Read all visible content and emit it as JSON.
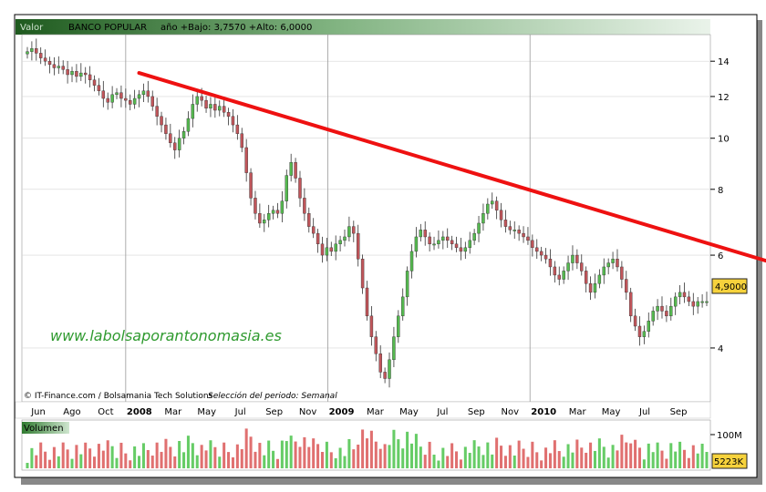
{
  "header": {
    "valor_label": "Valor",
    "ticker": "BANCO POPULAR",
    "stats": "año +Bajo: 3,7570 +Alto: 6,0000"
  },
  "watermark": "www.labolsaporantonomasia.es",
  "footer": {
    "source": "© IT-Finance.com / Bolsamania Tech Solutions",
    "selection": "Selección del periodo: Semanal"
  },
  "volume_panel": {
    "label": "Volumen",
    "scale_label": "100M",
    "last_value": "5223K"
  },
  "colors": {
    "up": "#55b94f",
    "down": "#c0555a",
    "trendline": "#ee1111",
    "vol_up": "#66cc66",
    "vol_down": "#e07070"
  },
  "chart_data": {
    "type": "candlestick",
    "title": "",
    "xlabel": "",
    "ylabel": "",
    "y_scale": "log",
    "y_ticks": [
      4,
      6,
      8,
      10,
      12,
      14
    ],
    "ylim": [
      3.2,
      15.6
    ],
    "grid": true,
    "last_price_label": "4,9000",
    "last_price": 4.9,
    "x_tick_labels": [
      {
        "label": "Jun",
        "bold": false
      },
      {
        "label": "Ago",
        "bold": false
      },
      {
        "label": "Oct",
        "bold": false
      },
      {
        "label": "2008",
        "bold": true
      },
      {
        "label": "Mar",
        "bold": false
      },
      {
        "label": "May",
        "bold": false
      },
      {
        "label": "Jul",
        "bold": false
      },
      {
        "label": "Sep",
        "bold": false
      },
      {
        "label": "Nov",
        "bold": false
      },
      {
        "label": "2009",
        "bold": true
      },
      {
        "label": "Mar",
        "bold": false
      },
      {
        "label": "May",
        "bold": false
      },
      {
        "label": "Jul",
        "bold": false
      },
      {
        "label": "Sep",
        "bold": false
      },
      {
        "label": "Nov",
        "bold": false
      },
      {
        "label": "2010",
        "bold": true
      },
      {
        "label": "Mar",
        "bold": false
      },
      {
        "label": "May",
        "bold": false
      },
      {
        "label": "Jul",
        "bold": false
      },
      {
        "label": "Sep",
        "bold": false
      }
    ],
    "year_separators": [
      "2008",
      "2009",
      "2010"
    ],
    "trendline": {
      "start_index": 25,
      "start_value": 13.3,
      "end_index": 194,
      "end_value": 4.95
    },
    "close_series": [
      14.6,
      14.8,
      14.5,
      14.2,
      14.0,
      13.8,
      13.6,
      13.7,
      13.5,
      13.2,
      13.4,
      13.1,
      13.3,
      13.2,
      12.9,
      12.6,
      12.3,
      11.9,
      11.7,
      12.1,
      12.2,
      11.9,
      11.8,
      11.6,
      11.9,
      12.1,
      12.3,
      12.0,
      11.5,
      11.0,
      10.6,
      10.2,
      9.8,
      9.5,
      10.0,
      10.3,
      10.9,
      11.6,
      12.0,
      11.8,
      11.4,
      11.6,
      11.3,
      11.5,
      11.2,
      11.0,
      10.6,
      10.2,
      9.6,
      8.6,
      7.7,
      7.2,
      6.9,
      7.0,
      7.2,
      7.3,
      7.2,
      7.6,
      8.5,
      9.0,
      8.4,
      7.7,
      7.2,
      6.8,
      6.6,
      6.3,
      6.0,
      6.2,
      6.1,
      6.3,
      6.4,
      6.5,
      6.8,
      6.6,
      5.9,
      5.2,
      4.6,
      4.2,
      3.9,
      3.6,
      3.5,
      3.8,
      4.2,
      4.6,
      5.0,
      5.6,
      6.1,
      6.5,
      6.7,
      6.5,
      6.3,
      6.3,
      6.4,
      6.5,
      6.4,
      6.3,
      6.2,
      6.1,
      6.2,
      6.4,
      6.6,
      6.9,
      7.2,
      7.5,
      7.6,
      7.3,
      7.0,
      6.8,
      6.7,
      6.7,
      6.6,
      6.5,
      6.4,
      6.2,
      6.1,
      6.0,
      5.9,
      5.7,
      5.5,
      5.4,
      5.6,
      5.8,
      6.0,
      5.8,
      5.6,
      5.3,
      5.1,
      5.3,
      5.5,
      5.7,
      5.8,
      5.9,
      5.7,
      5.4,
      5.1,
      4.6,
      4.4,
      4.2,
      4.3,
      4.5,
      4.7,
      4.8,
      4.7,
      4.6,
      4.8,
      5.0,
      5.1,
      5.0,
      4.9,
      4.8,
      4.9,
      4.9,
      4.9
    ]
  }
}
